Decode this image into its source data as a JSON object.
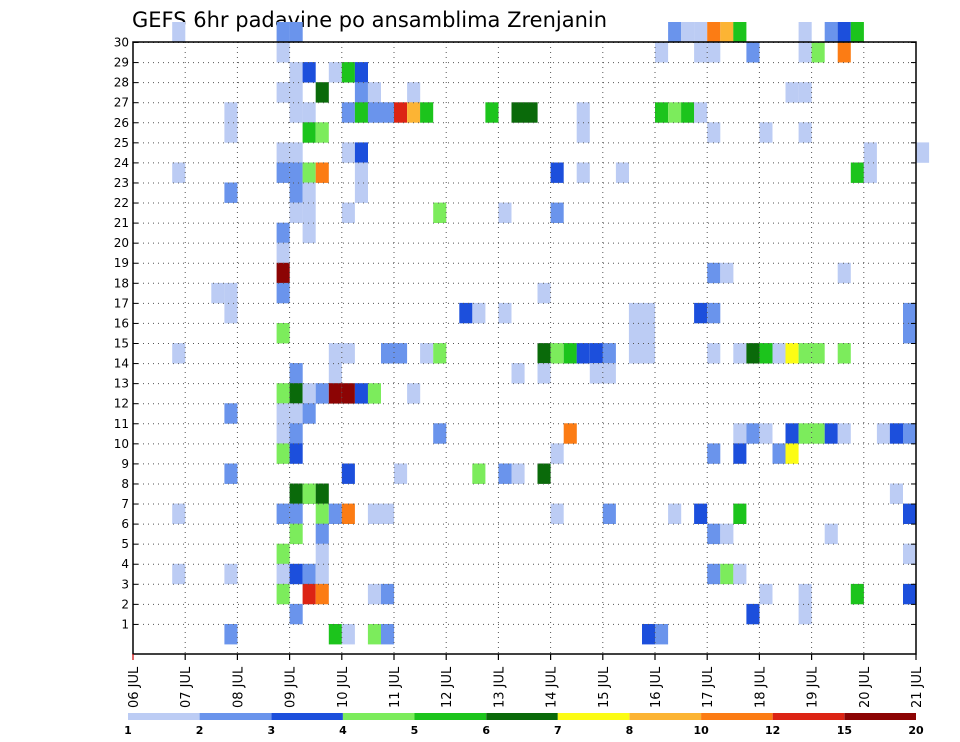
{
  "chart_data": {
    "type": "heatmap",
    "title": "GEFS 6hr padavine po ansamblima Zrenjanin",
    "xlabel": "",
    "ylabel": "",
    "x_tick_labels": [
      "06 JUL",
      "07 JUL",
      "08 JUL",
      "09 JUL",
      "10 JUL",
      "11 JUL",
      "12 JUL",
      "13 JUL",
      "14 JUL",
      "15 JUL",
      "16 JUL",
      "17 JUL",
      "18 JUL",
      "19 JUL",
      "20 JUL",
      "21 JUL"
    ],
    "y_tick_labels": [
      "1",
      "2",
      "3",
      "4",
      "5",
      "6",
      "7",
      "8",
      "9",
      "10",
      "11",
      "12",
      "13",
      "14",
      "15",
      "16",
      "17",
      "18",
      "19",
      "20",
      "21",
      "22",
      "23",
      "24",
      "25",
      "26",
      "27",
      "28",
      "29",
      "30"
    ],
    "x_range_days": [
      0,
      15
    ],
    "y_range_members": [
      0,
      30
    ],
    "time_step_days": 0.25,
    "grid": true,
    "legend": {
      "placement": "bottom",
      "boundaries": [
        "1",
        "2",
        "3",
        "4",
        "5",
        "6",
        "7",
        "8",
        "10",
        "12",
        "15",
        "20"
      ],
      "colors": [
        "#bcccf4",
        "#6a94ec",
        "#1c4fdc",
        "#7cec5c",
        "#1cc41c",
        "#0a6a0a",
        "#fcfc14",
        "#fcb434",
        "#fc7c14",
        "#dc2414",
        "#8c0404"
      ]
    },
    "colors": {
      "c1": "#bcccf4",
      "c2": "#6a94ec",
      "c3": "#1c4fdc",
      "c4": "#7cec5c",
      "c5": "#1cc41c",
      "c6": "#0a6a0a",
      "c7": "#fcfc14",
      "c8": "#fcb434",
      "c10": "#fc7c14",
      "c12": "#dc2414",
      "c15": "#8c0404"
    },
    "cells": [
      [
        0.75,
        30,
        "c1"
      ],
      [
        2.75,
        30,
        "c2"
      ],
      [
        3,
        30,
        "c2"
      ],
      [
        10.25,
        30,
        "c2"
      ],
      [
        10.5,
        30,
        "c1"
      ],
      [
        10.75,
        30,
        "c1"
      ],
      [
        11,
        30,
        "c10"
      ],
      [
        11.25,
        30,
        "c8"
      ],
      [
        11.5,
        30,
        "c5"
      ],
      [
        12.75,
        30,
        "c1"
      ],
      [
        13.25,
        30,
        "c2"
      ],
      [
        13.5,
        30,
        "c3"
      ],
      [
        13.75,
        30,
        "c5"
      ],
      [
        2.75,
        29,
        "c1"
      ],
      [
        10,
        29,
        "c1"
      ],
      [
        10.75,
        29,
        "c1"
      ],
      [
        11,
        29,
        "c1"
      ],
      [
        11.75,
        29,
        "c2"
      ],
      [
        12.75,
        29,
        "c1"
      ],
      [
        13,
        29,
        "c4"
      ],
      [
        13.5,
        29,
        "c10"
      ],
      [
        3,
        28,
        "c1"
      ],
      [
        3.25,
        28,
        "c3"
      ],
      [
        3.75,
        28,
        "c1"
      ],
      [
        4,
        28,
        "c5"
      ],
      [
        4.25,
        28,
        "c3"
      ],
      [
        2.75,
        27,
        "c1"
      ],
      [
        3,
        27,
        "c1"
      ],
      [
        3.5,
        27,
        "c6"
      ],
      [
        4.25,
        27,
        "c2"
      ],
      [
        4.5,
        27,
        "c1"
      ],
      [
        5.25,
        27,
        "c1"
      ],
      [
        12.5,
        27,
        "c1"
      ],
      [
        12.75,
        27,
        "c1"
      ],
      [
        1.75,
        26,
        "c1"
      ],
      [
        3,
        26,
        "c1"
      ],
      [
        3.25,
        26,
        "c1"
      ],
      [
        4,
        26,
        "c2"
      ],
      [
        4.25,
        26,
        "c5"
      ],
      [
        4.5,
        26,
        "c2"
      ],
      [
        4.75,
        26,
        "c2"
      ],
      [
        5,
        26,
        "c12"
      ],
      [
        5.25,
        26,
        "c8"
      ],
      [
        5.5,
        26,
        "c5"
      ],
      [
        6.75,
        26,
        "c5"
      ],
      [
        7.25,
        26,
        "c6"
      ],
      [
        7.5,
        26,
        "c6"
      ],
      [
        8.5,
        26,
        "c1"
      ],
      [
        10,
        26,
        "c5"
      ],
      [
        10.25,
        26,
        "c4"
      ],
      [
        10.5,
        26,
        "c5"
      ],
      [
        10.75,
        26,
        "c1"
      ],
      [
        1.75,
        25,
        "c1"
      ],
      [
        3.25,
        25,
        "c5"
      ],
      [
        3.5,
        25,
        "c4"
      ],
      [
        8.5,
        25,
        "c1"
      ],
      [
        11,
        25,
        "c1"
      ],
      [
        12,
        25,
        "c1"
      ],
      [
        12.75,
        25,
        "c1"
      ],
      [
        2.75,
        24,
        "c1"
      ],
      [
        3,
        24,
        "c1"
      ],
      [
        4,
        24,
        "c1"
      ],
      [
        4.25,
        24,
        "c3"
      ],
      [
        14,
        24,
        "c1"
      ],
      [
        15,
        24,
        "c1"
      ],
      [
        0.75,
        23,
        "c1"
      ],
      [
        2.75,
        23,
        "c2"
      ],
      [
        3,
        23,
        "c2"
      ],
      [
        3.25,
        23,
        "c4"
      ],
      [
        3.5,
        23,
        "c10"
      ],
      [
        4.25,
        23,
        "c1"
      ],
      [
        8,
        23,
        "c3"
      ],
      [
        8.5,
        23,
        "c1"
      ],
      [
        9.25,
        23,
        "c1"
      ],
      [
        13.75,
        23,
        "c5"
      ],
      [
        14,
        23,
        "c1"
      ],
      [
        1.75,
        22,
        "c2"
      ],
      [
        3,
        22,
        "c2"
      ],
      [
        3.25,
        22,
        "c1"
      ],
      [
        4.25,
        22,
        "c1"
      ],
      [
        3,
        21,
        "c1"
      ],
      [
        3.25,
        21,
        "c1"
      ],
      [
        4,
        21,
        "c1"
      ],
      [
        5.75,
        21,
        "c4"
      ],
      [
        7,
        21,
        "c1"
      ],
      [
        8,
        21,
        "c2"
      ],
      [
        2.75,
        20,
        "c2"
      ],
      [
        3.25,
        20,
        "c1"
      ],
      [
        2.75,
        19,
        "c1"
      ],
      [
        2.75,
        18,
        "c15"
      ],
      [
        11,
        18,
        "c2"
      ],
      [
        11.25,
        18,
        "c1"
      ],
      [
        13.5,
        18,
        "c1"
      ],
      [
        1.5,
        17,
        "c1"
      ],
      [
        1.75,
        17,
        "c1"
      ],
      [
        2.75,
        17,
        "c2"
      ],
      [
        7.75,
        17,
        "c1"
      ],
      [
        1.75,
        16,
        "c1"
      ],
      [
        6.25,
        16,
        "c3"
      ],
      [
        6.5,
        16,
        "c1"
      ],
      [
        7,
        16,
        "c1"
      ],
      [
        9.5,
        16,
        "c1"
      ],
      [
        9.75,
        16,
        "c1"
      ],
      [
        10.75,
        16,
        "c3"
      ],
      [
        11,
        16,
        "c2"
      ],
      [
        14.75,
        16,
        "c2"
      ],
      [
        2.75,
        15,
        "c4"
      ],
      [
        9.5,
        15,
        "c1"
      ],
      [
        9.75,
        15,
        "c1"
      ],
      [
        14.75,
        15,
        "c2"
      ],
      [
        0.75,
        14,
        "c1"
      ],
      [
        3.75,
        14,
        "c1"
      ],
      [
        4,
        14,
        "c1"
      ],
      [
        4.75,
        14,
        "c2"
      ],
      [
        5,
        14,
        "c2"
      ],
      [
        5.5,
        14,
        "c1"
      ],
      [
        5.75,
        14,
        "c4"
      ],
      [
        7.75,
        14,
        "c6"
      ],
      [
        8,
        14,
        "c4"
      ],
      [
        8.25,
        14,
        "c5"
      ],
      [
        8.5,
        14,
        "c3"
      ],
      [
        8.75,
        14,
        "c3"
      ],
      [
        9,
        14,
        "c2"
      ],
      [
        9.5,
        14,
        "c1"
      ],
      [
        9.75,
        14,
        "c1"
      ],
      [
        11,
        14,
        "c1"
      ],
      [
        11.5,
        14,
        "c1"
      ],
      [
        11.75,
        14,
        "c6"
      ],
      [
        12,
        14,
        "c5"
      ],
      [
        12.25,
        14,
        "c1"
      ],
      [
        12.5,
        14,
        "c7"
      ],
      [
        12.75,
        14,
        "c4"
      ],
      [
        13,
        14,
        "c4"
      ],
      [
        13.5,
        14,
        "c4"
      ],
      [
        3,
        13,
        "c2"
      ],
      [
        3.75,
        13,
        "c1"
      ],
      [
        7.25,
        13,
        "c1"
      ],
      [
        7.75,
        13,
        "c1"
      ],
      [
        8.75,
        13,
        "c1"
      ],
      [
        9,
        13,
        "c1"
      ],
      [
        2.75,
        12,
        "c4"
      ],
      [
        3,
        12,
        "c6"
      ],
      [
        3.25,
        12,
        "c1"
      ],
      [
        3.5,
        12,
        "c2"
      ],
      [
        3.75,
        12,
        "c15"
      ],
      [
        4,
        12,
        "c15"
      ],
      [
        4.25,
        12,
        "c3"
      ],
      [
        4.5,
        12,
        "c4"
      ],
      [
        5.25,
        12,
        "c1"
      ],
      [
        1.75,
        11,
        "c2"
      ],
      [
        2.75,
        11,
        "c1"
      ],
      [
        3,
        11,
        "c1"
      ],
      [
        3.25,
        11,
        "c2"
      ],
      [
        2.75,
        10,
        "c1"
      ],
      [
        3,
        10,
        "c2"
      ],
      [
        5.75,
        10,
        "c2"
      ],
      [
        8.25,
        10,
        "c10"
      ],
      [
        11.5,
        10,
        "c1"
      ],
      [
        11.75,
        10,
        "c2"
      ],
      [
        12,
        10,
        "c1"
      ],
      [
        12.5,
        10,
        "c3"
      ],
      [
        12.75,
        10,
        "c4"
      ],
      [
        13,
        10,
        "c4"
      ],
      [
        13.25,
        10,
        "c3"
      ],
      [
        13.5,
        10,
        "c1"
      ],
      [
        14.25,
        10,
        "c1"
      ],
      [
        14.5,
        10,
        "c3"
      ],
      [
        14.75,
        10,
        "c2"
      ],
      [
        2.75,
        9,
        "c4"
      ],
      [
        3,
        9,
        "c3"
      ],
      [
        8,
        9,
        "c1"
      ],
      [
        11,
        9,
        "c2"
      ],
      [
        11.5,
        9,
        "c3"
      ],
      [
        12.25,
        9,
        "c2"
      ],
      [
        12.5,
        9,
        "c7"
      ],
      [
        1.75,
        8,
        "c2"
      ],
      [
        4,
        8,
        "c3"
      ],
      [
        5,
        8,
        "c1"
      ],
      [
        6.5,
        8,
        "c4"
      ],
      [
        7,
        8,
        "c2"
      ],
      [
        7.25,
        8,
        "c1"
      ],
      [
        7.75,
        8,
        "c6"
      ],
      [
        3,
        7,
        "c6"
      ],
      [
        3.25,
        7,
        "c4"
      ],
      [
        3.5,
        7,
        "c6"
      ],
      [
        14.5,
        7,
        "c1"
      ],
      [
        0.75,
        6,
        "c1"
      ],
      [
        2.75,
        6,
        "c2"
      ],
      [
        3,
        6,
        "c2"
      ],
      [
        3.5,
        6,
        "c4"
      ],
      [
        3.75,
        6,
        "c2"
      ],
      [
        4,
        6,
        "c10"
      ],
      [
        4.5,
        6,
        "c1"
      ],
      [
        4.75,
        6,
        "c1"
      ],
      [
        8,
        6,
        "c1"
      ],
      [
        9,
        6,
        "c2"
      ],
      [
        10.25,
        6,
        "c1"
      ],
      [
        10.75,
        6,
        "c3"
      ],
      [
        11.5,
        6,
        "c5"
      ],
      [
        14.75,
        6,
        "c3"
      ],
      [
        3,
        5,
        "c4"
      ],
      [
        3.5,
        5,
        "c2"
      ],
      [
        11,
        5,
        "c2"
      ],
      [
        11.25,
        5,
        "c1"
      ],
      [
        13.25,
        5,
        "c1"
      ],
      [
        2.75,
        4,
        "c4"
      ],
      [
        3.5,
        4,
        "c1"
      ],
      [
        14.75,
        4,
        "c1"
      ],
      [
        0.75,
        3,
        "c1"
      ],
      [
        1.75,
        3,
        "c1"
      ],
      [
        2.75,
        3,
        "c1"
      ],
      [
        3,
        3,
        "c3"
      ],
      [
        3.25,
        3,
        "c2"
      ],
      [
        3.5,
        3,
        "c1"
      ],
      [
        11,
        3,
        "c2"
      ],
      [
        11.25,
        3,
        "c4"
      ],
      [
        11.5,
        3,
        "c1"
      ],
      [
        2.75,
        2,
        "c4"
      ],
      [
        3.25,
        2,
        "c12"
      ],
      [
        3.5,
        2,
        "c10"
      ],
      [
        4.5,
        2,
        "c1"
      ],
      [
        4.75,
        2,
        "c2"
      ],
      [
        12,
        2,
        "c1"
      ],
      [
        12.75,
        2,
        "c1"
      ],
      [
        13.75,
        2,
        "c5"
      ],
      [
        14.75,
        2,
        "c3"
      ],
      [
        3,
        1,
        "c2"
      ],
      [
        11.75,
        1,
        "c3"
      ],
      [
        12.75,
        1,
        "c1"
      ],
      [
        1.75,
        0,
        "c2"
      ],
      [
        3.75,
        0,
        "c5"
      ],
      [
        4,
        0,
        "c1"
      ],
      [
        4.5,
        0,
        "c4"
      ],
      [
        4.75,
        0,
        "c2"
      ],
      [
        9.75,
        0,
        "c3"
      ],
      [
        10,
        0,
        "c2"
      ]
    ]
  }
}
